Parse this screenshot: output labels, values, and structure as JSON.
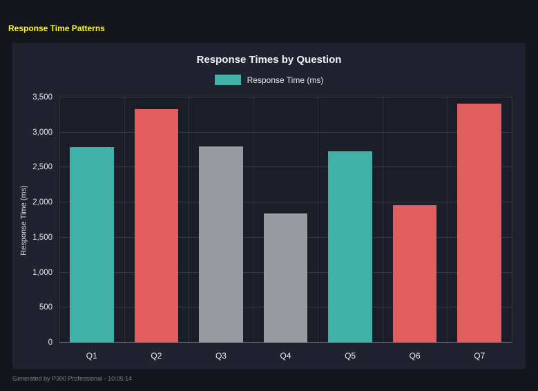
{
  "page": {
    "title": "Response Time Patterns",
    "title_color": "#ffff00",
    "footer": "Generated by P300 Professional - 10:05:14"
  },
  "chart_data": {
    "type": "bar",
    "title": "Response Times by Question",
    "legend": [
      {
        "label": "Response Time (ms)",
        "color": "#40b2a8"
      }
    ],
    "legend_position": "top",
    "categories": [
      "Q1",
      "Q2",
      "Q3",
      "Q4",
      "Q5",
      "Q6",
      "Q7"
    ],
    "values": [
      2790,
      3330,
      2800,
      1840,
      2730,
      1960,
      3410
    ],
    "bar_colors": [
      "#40b2a8",
      "#e25e5e",
      "#9a9aa2",
      "#9a9aa2",
      "#40b2a8",
      "#e25e5e",
      "#e25e5e"
    ],
    "xlabel": "",
    "ylabel": "Response Time (ms)",
    "ylim": [
      0,
      3500
    ],
    "yticks": [
      0,
      500,
      1000,
      1500,
      2000,
      2500,
      3000,
      3500
    ],
    "ytick_labels": [
      "0",
      "500",
      "1,000",
      "1,500",
      "2,000",
      "2,500",
      "3,000",
      "3,500"
    ],
    "grid": true
  }
}
